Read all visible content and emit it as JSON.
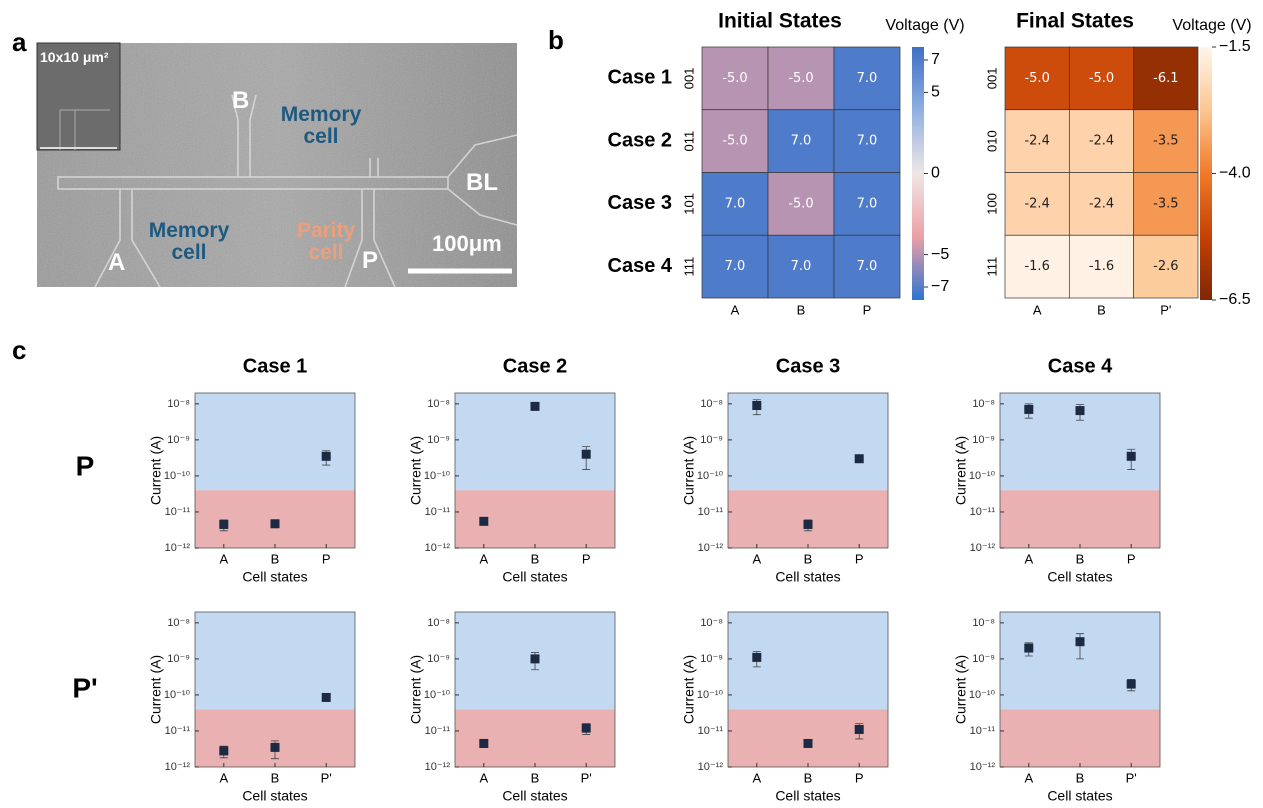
{
  "panel_labels": [
    "a",
    "b",
    "c"
  ],
  "micrograph": {
    "inset_label": "10x10 μm²",
    "labels": [
      "B",
      "Memory cell",
      "BL",
      "A",
      "Memory cell",
      "Parity cell",
      "P"
    ],
    "scale_bar": "100μm"
  },
  "row_labels": [
    "P",
    "P'"
  ],
  "chart_data": [
    {
      "type": "heatmap",
      "title": "Initial States",
      "colorbar_label": "Voltage (V)",
      "row_titles": [
        "Case 1",
        "Case 2",
        "Case 3",
        "Case 4"
      ],
      "rows": [
        "001",
        "011",
        "101",
        "111"
      ],
      "columns": [
        "A",
        "B",
        "P"
      ],
      "values": [
        [
          -5,
          -5,
          7
        ],
        [
          -5,
          7,
          7
        ],
        [
          7,
          -5,
          7
        ],
        [
          7,
          7,
          7
        ]
      ],
      "value_labels": [
        [
          "-5.0",
          "-5.0",
          "7.0"
        ],
        [
          "-5.0",
          "7.0",
          "7.0"
        ],
        [
          "7.0",
          "-5.0",
          "7.0"
        ],
        [
          "7.0",
          "7.0",
          "7.0"
        ]
      ],
      "clim": [
        -7.8,
        7.8
      ],
      "cticks": [
        7,
        5,
        0,
        {
          "value": -5,
          "label": "−5"
        },
        {
          "value": -7,
          "label": "−7"
        }
      ],
      "colormap": [
        "#2e74d0",
        "#eba0a6",
        "#f0e6e6",
        "#8fb0e0",
        "#3f6fc4"
      ],
      "text_color": "#ffffff"
    },
    {
      "type": "heatmap",
      "title": "Final States",
      "colorbar_label": "Voltage (V)",
      "rows": [
        "001",
        "010",
        "100",
        "111"
      ],
      "columns": [
        "A",
        "B",
        "P'"
      ],
      "values": [
        [
          -5,
          -5,
          -6.1
        ],
        [
          -2.4,
          -2.4,
          -3.5
        ],
        [
          -2.4,
          -2.4,
          -3.5
        ],
        [
          -1.6,
          -1.6,
          -2.6
        ]
      ],
      "value_labels": [
        [
          "-5.0",
          "-5.0",
          "-6.1"
        ],
        [
          "-2.4",
          "-2.4",
          "-3.5"
        ],
        [
          "-2.4",
          "-2.4",
          "-3.5"
        ],
        [
          "-1.6",
          "-1.6",
          "-2.6"
        ]
      ],
      "clim": [
        -6.5,
        -1.5
      ],
      "cticks": [
        {
          "value": -1.5,
          "label": "−1.5"
        },
        {
          "value": -4,
          "label": "−4.0"
        },
        {
          "value": -6.5,
          "label": "−6.5"
        }
      ],
      "colormap": [
        "#7f2704",
        "#c44103",
        "#f07a2a",
        "#fdc692",
        "#fff5eb"
      ]
    },
    {
      "type": "scatter",
      "title": "Case 1",
      "xlabel": "Cell states",
      "ylabel": "Current (A)",
      "log_y": true,
      "categories": [
        "A",
        "B",
        "P"
      ],
      "values": [
        4.5e-12,
        4.7e-12,
        3.5e-10
      ],
      "errors": [
        1.5e-12,
        3e-13,
        1.5e-10
      ],
      "ylim": [
        1e-12,
        2e-08
      ],
      "yticks": [
        {
          "value": 1e-12,
          "label": "10⁻¹²"
        },
        {
          "value": 1e-11,
          "label": "10⁻¹¹"
        },
        {
          "value": 1e-10,
          "label": "10⁻¹⁰"
        },
        {
          "value": 1e-09,
          "label": "10⁻⁹"
        },
        {
          "value": 1e-08,
          "label": "10⁻⁸"
        }
      ],
      "threshold": 4e-11,
      "high_color": "#c3d9f2",
      "low_color": "#e9b1b1",
      "color": "#1c2a44"
    },
    {
      "type": "scatter",
      "title": "Case 2",
      "xlabel": "Cell states",
      "ylabel": "Current (A)",
      "log_y": true,
      "categories": [
        "A",
        "B",
        "P"
      ],
      "values": [
        5.5e-12,
        8.5e-09,
        4e-10
      ],
      "errors": [
        5e-13,
        5e-10,
        2.5e-10
      ],
      "ylim": [
        1e-12,
        2e-08
      ],
      "yticks": [
        {
          "value": 1e-12,
          "label": "10⁻¹²"
        },
        {
          "value": 1e-11,
          "label": "10⁻¹¹"
        },
        {
          "value": 1e-10,
          "label": "10⁻¹⁰"
        },
        {
          "value": 1e-09,
          "label": "10⁻⁹"
        },
        {
          "value": 1e-08,
          "label": "10⁻⁸"
        }
      ],
      "threshold": 4e-11,
      "high_color": "#c3d9f2",
      "low_color": "#e9b1b1",
      "color": "#1c2a44"
    },
    {
      "type": "scatter",
      "title": "Case 3",
      "xlabel": "Cell states",
      "ylabel": "Current (A)",
      "log_y": true,
      "categories": [
        "A",
        "B",
        "P"
      ],
      "values": [
        9e-09,
        4.5e-12,
        3e-10
      ],
      "errors": [
        4e-09,
        1.5e-12,
        2e-11
      ],
      "ylim": [
        1e-12,
        2e-08
      ],
      "yticks": [
        {
          "value": 1e-12,
          "label": "10⁻¹²"
        },
        {
          "value": 1e-11,
          "label": "10⁻¹¹"
        },
        {
          "value": 1e-10,
          "label": "10⁻¹⁰"
        },
        {
          "value": 1e-09,
          "label": "10⁻⁹"
        },
        {
          "value": 1e-08,
          "label": "10⁻⁸"
        }
      ],
      "threshold": 4e-11,
      "high_color": "#c3d9f2",
      "low_color": "#e9b1b1",
      "color": "#1c2a44"
    },
    {
      "type": "scatter",
      "title": "Case 4",
      "xlabel": "Cell states",
      "ylabel": "Current (A)",
      "log_y": true,
      "categories": [
        "A",
        "B",
        "P"
      ],
      "values": [
        7e-09,
        6.5e-09,
        3.5e-10
      ],
      "errors": [
        3e-09,
        3e-09,
        2e-10
      ],
      "ylim": [
        1e-12,
        2e-08
      ],
      "yticks": [
        {
          "value": 1e-12,
          "label": "10⁻¹²"
        },
        {
          "value": 1e-11,
          "label": "10⁻¹¹"
        },
        {
          "value": 1e-10,
          "label": "10⁻¹⁰"
        },
        {
          "value": 1e-09,
          "label": "10⁻⁹"
        },
        {
          "value": 1e-08,
          "label": "10⁻⁸"
        }
      ],
      "threshold": 4e-11,
      "high_color": "#c3d9f2",
      "low_color": "#e9b1b1",
      "color": "#1c2a44"
    },
    {
      "type": "scatter",
      "xlabel": "Cell states",
      "ylabel": "Current (A)",
      "log_y": true,
      "categories": [
        "A",
        "B",
        "P'"
      ],
      "values": [
        2.8e-12,
        3.5e-12,
        8.5e-11
      ],
      "errors": [
        1e-12,
        1.8e-12,
        1e-11
      ],
      "ylim": [
        1e-12,
        2e-08
      ],
      "yticks": [
        {
          "value": 1e-12,
          "label": "10⁻¹²"
        },
        {
          "value": 1e-11,
          "label": "10⁻¹¹"
        },
        {
          "value": 1e-10,
          "label": "10⁻¹⁰"
        },
        {
          "value": 1e-09,
          "label": "10⁻⁹"
        },
        {
          "value": 1e-08,
          "label": "10⁻⁸"
        }
      ],
      "threshold": 4e-11,
      "high_color": "#c3d9f2",
      "low_color": "#e9b1b1",
      "color": "#1c2a44"
    },
    {
      "type": "scatter",
      "xlabel": "Cell states",
      "ylabel": "Current (A)",
      "log_y": true,
      "categories": [
        "A",
        "B",
        "P'"
      ],
      "values": [
        4.5e-12,
        1e-09,
        1.2e-11
      ],
      "errors": [
        1e-12,
        5e-10,
        4e-12
      ],
      "ylim": [
        1e-12,
        2e-08
      ],
      "yticks": [
        {
          "value": 1e-12,
          "label": "10⁻¹²"
        },
        {
          "value": 1e-11,
          "label": "10⁻¹¹"
        },
        {
          "value": 1e-10,
          "label": "10⁻¹⁰"
        },
        {
          "value": 1e-09,
          "label": "10⁻⁹"
        },
        {
          "value": 1e-08,
          "label": "10⁻⁸"
        }
      ],
      "threshold": 4e-11,
      "high_color": "#c3d9f2",
      "low_color": "#e9b1b1",
      "color": "#1c2a44"
    },
    {
      "type": "scatter",
      "xlabel": "Cell states",
      "ylabel": "Current (A)",
      "log_y": true,
      "categories": [
        "A",
        "B",
        "P"
      ],
      "values": [
        1.1e-09,
        4.5e-12,
        1.1e-11
      ],
      "errors": [
        5e-10,
        1e-12,
        5e-12
      ],
      "ylim": [
        1e-12,
        2e-08
      ],
      "yticks": [
        {
          "value": 1e-12,
          "label": "10⁻¹²"
        },
        {
          "value": 1e-11,
          "label": "10⁻¹¹"
        },
        {
          "value": 1e-10,
          "label": "10⁻¹⁰"
        },
        {
          "value": 1e-09,
          "label": "10⁻⁹"
        },
        {
          "value": 1e-08,
          "label": "10⁻⁸"
        }
      ],
      "threshold": 4e-11,
      "high_color": "#c3d9f2",
      "low_color": "#e9b1b1",
      "color": "#1c2a44"
    },
    {
      "type": "scatter",
      "xlabel": "Cell states",
      "ylabel": "Current (A)",
      "log_y": true,
      "categories": [
        "A",
        "B",
        "P'"
      ],
      "values": [
        2e-09,
        3e-09,
        2e-10
      ],
      "errors": [
        8e-10,
        2e-09,
        7e-11
      ],
      "ylim": [
        1e-12,
        2e-08
      ],
      "yticks": [
        {
          "value": 1e-12,
          "label": "10⁻¹²"
        },
        {
          "value": 1e-11,
          "label": "10⁻¹¹"
        },
        {
          "value": 1e-10,
          "label": "10⁻¹⁰"
        },
        {
          "value": 1e-09,
          "label": "10⁻⁹"
        },
        {
          "value": 1e-08,
          "label": "10⁻⁸"
        }
      ],
      "threshold": 4e-11,
      "high_color": "#c3d9f2",
      "low_color": "#e9b1b1",
      "color": "#1c2a44"
    }
  ]
}
